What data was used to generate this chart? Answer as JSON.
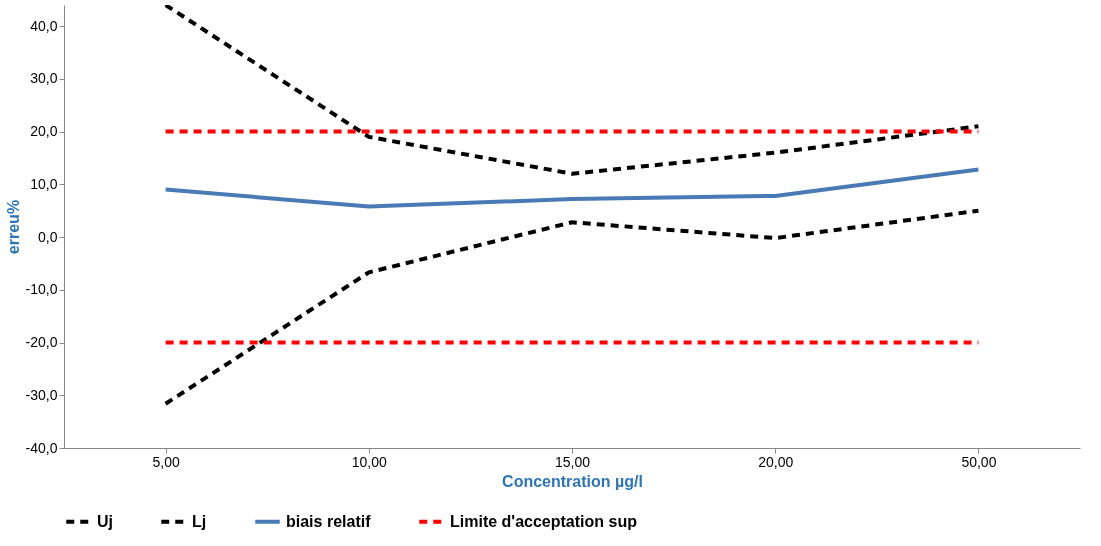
{
  "chart_data": {
    "type": "line",
    "xlabel": "Concentration µg/l",
    "ylabel": "erreu%",
    "categories": [
      "5,00",
      "10,00",
      "15,00",
      "20,00",
      "50,00"
    ],
    "series": [
      {
        "name": "Uj",
        "color": "#000000",
        "line_style": "dashed",
        "values": [
          44,
          19,
          12,
          16,
          21
        ]
      },
      {
        "name": "Lj",
        "color": "#000000",
        "line_style": "dashed",
        "values": [
          -31.6,
          -6.7,
          2.8,
          -0.2,
          5
        ]
      },
      {
        "name": "biais relatif",
        "color": "#4a7ab5",
        "line_style": "solid",
        "values": [
          9,
          5.8,
          7.2,
          7.8,
          12.8
        ]
      },
      {
        "name": "Limite d'acceptation sup",
        "color": "#ff0000",
        "line_style": "dashed",
        "values": [
          20,
          20,
          20,
          20,
          20
        ]
      },
      {
        "color": "#ff0000",
        "line_style": "dashed",
        "values": [
          -20,
          -20,
          -20,
          -20,
          -20
        ]
      }
    ],
    "ylim": [
      -40,
      44
    ],
    "yticks": [
      {
        "value": -40,
        "label": "-40,0"
      },
      {
        "value": -30,
        "label": "-30,0"
      },
      {
        "value": -20,
        "label": "-20,0"
      },
      {
        "value": -10,
        "label": "-10,0"
      },
      {
        "value": 0,
        "label": "0,0"
      },
      {
        "value": 10,
        "label": "10,0"
      },
      {
        "value": 20,
        "label": "20,0"
      },
      {
        "value": 30,
        "label": "30,0"
      },
      {
        "value": 40,
        "label": "40,0"
      }
    ],
    "grid": false,
    "legend": "bottom",
    "marker": "none"
  }
}
